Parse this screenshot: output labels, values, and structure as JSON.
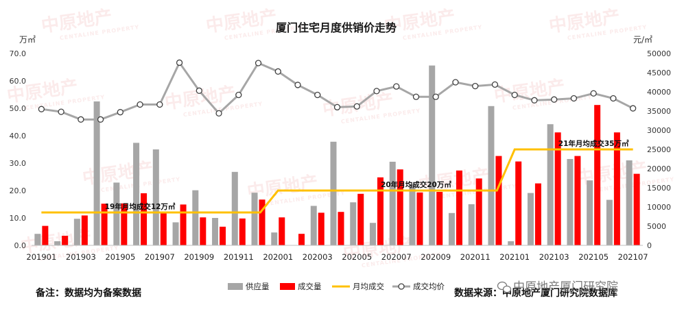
{
  "chart_data": {
    "type": "bar",
    "title": "厦门住宅月度供销价走势",
    "left_unit": "万㎡",
    "right_unit": "元/㎡",
    "left_axis": {
      "min": 0,
      "max": 70,
      "step": 10,
      "tick_labels": [
        "0.0",
        "10.0",
        "20.0",
        "30.0",
        "40.0",
        "50.0",
        "60.0",
        "70.0"
      ]
    },
    "right_axis": {
      "min": 0,
      "max": 50000,
      "step": 5000,
      "tick_labels": [
        "0",
        "5000",
        "10000",
        "15000",
        "20000",
        "25000",
        "30000",
        "35000",
        "40000",
        "45000",
        "50000"
      ]
    },
    "categories": [
      "201901",
      "201902",
      "201903",
      "201904",
      "201905",
      "201906",
      "201907",
      "201908",
      "201909",
      "201910",
      "201911",
      "201912",
      "202001",
      "202002",
      "202003",
      "202004",
      "202005",
      "202006",
      "202007",
      "202008",
      "202009",
      "202010",
      "202011",
      "202012",
      "202101",
      "202102",
      "202103",
      "202104",
      "202105",
      "202106",
      "202107"
    ],
    "x_tick_labels": [
      "201901",
      "201903",
      "201905",
      "201907",
      "201909",
      "201911",
      "202001",
      "202003",
      "202005",
      "202007",
      "202009",
      "202011",
      "202101",
      "202103",
      "202105",
      "202107"
    ],
    "series": [
      {
        "name": "供应量",
        "kind": "bar",
        "axis": "left",
        "color": "#a6a6a6",
        "values": [
          4.2,
          1.5,
          9.7,
          52.5,
          22.9,
          37.4,
          35.0,
          8.4,
          20.1,
          10.0,
          26.8,
          19.2,
          4.7,
          0.0,
          14.4,
          37.8,
          15.7,
          8.2,
          30.5,
          22.3,
          65.6,
          11.8,
          15.0,
          50.8,
          1.5,
          19.1,
          44.2,
          31.5,
          23.7,
          16.6,
          31.0
        ]
      },
      {
        "name": "成交量",
        "kind": "bar",
        "axis": "left",
        "color": "#ff0000",
        "values": [
          7.1,
          3.5,
          10.9,
          15.2,
          15.3,
          19.0,
          11.9,
          14.9,
          10.2,
          6.8,
          9.8,
          16.7,
          10.2,
          4.2,
          11.9,
          12.2,
          18.8,
          24.8,
          27.7,
          19.3,
          19.5,
          27.3,
          24.4,
          32.6,
          30.6,
          22.6,
          41.2,
          32.6,
          51.2,
          41.2,
          26.1
        ]
      },
      {
        "name": "月均成交",
        "kind": "step-line",
        "axis": "left",
        "color": "#ffc000",
        "values": [
          12,
          12,
          12,
          12,
          12,
          12,
          12,
          12,
          12,
          12,
          12,
          12,
          20,
          20,
          20,
          20,
          20,
          20,
          20,
          20,
          20,
          20,
          20,
          20,
          35,
          35,
          35,
          35,
          35,
          35,
          35
        ]
      },
      {
        "name": "成交均价",
        "kind": "line-marker",
        "axis": "right",
        "color": "#a6a6a6",
        "values": [
          35500,
          34800,
          32800,
          32800,
          34700,
          36700,
          36700,
          47600,
          40300,
          34400,
          39200,
          47500,
          45300,
          41800,
          39200,
          36000,
          36200,
          40200,
          41400,
          38700,
          38700,
          42500,
          41500,
          41900,
          39200,
          37800,
          38000,
          38300,
          39600,
          38300,
          35700
        ]
      }
    ],
    "annotations": [
      "19年月均成交12万㎡",
      "20年月均成交20万㎡",
      "21年月均成交35万㎡"
    ],
    "legend": {
      "placement": "bottom-center",
      "items": [
        "供应量",
        "成交量",
        "月均成交",
        "成交均价"
      ]
    },
    "grid": false
  },
  "footer": {
    "note": "备注：数据均为备案数据",
    "source": "数据来源：中原地产厦门研究院数据库",
    "wechat_label": "中原地产厦门研究院"
  },
  "watermark": {
    "text": "中原地产",
    "subtext": "CENTALINE PROPERTY"
  }
}
